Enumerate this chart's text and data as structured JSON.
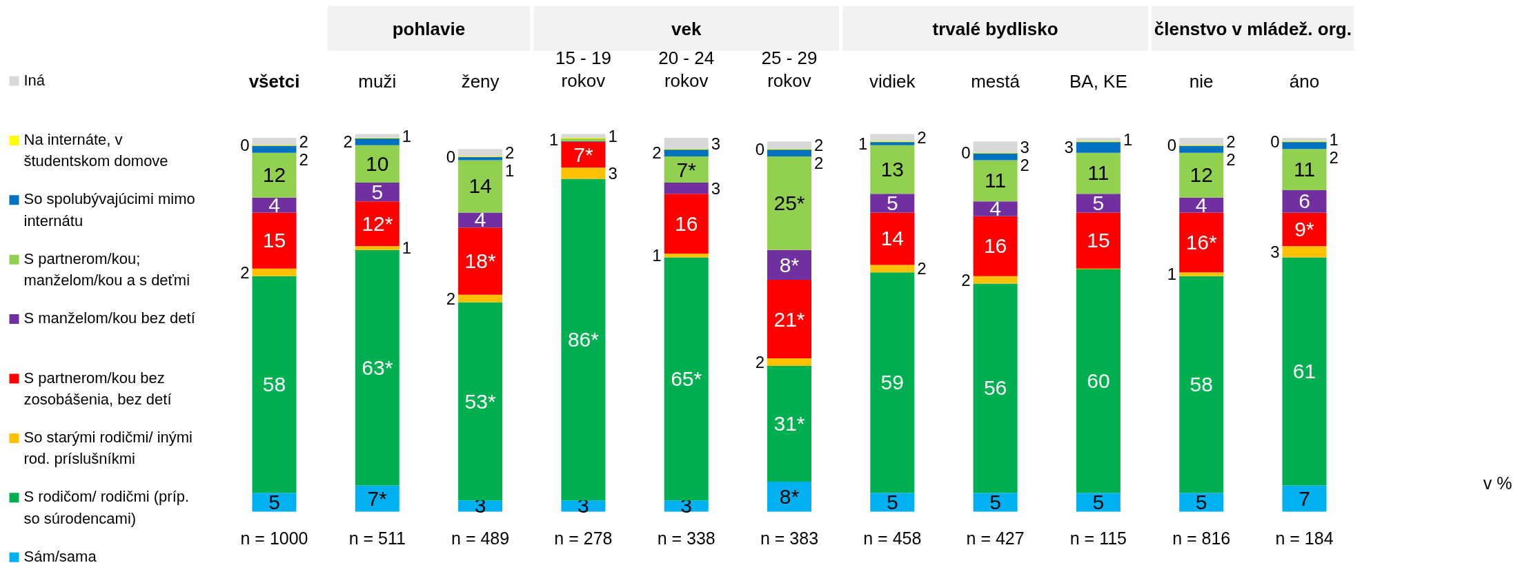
{
  "chart_data": {
    "type": "bar",
    "stacked": true,
    "legend": "left",
    "categories": [
      "všetci",
      "muži",
      "ženy",
      "15 - 19 rokov",
      "20 - 24 rokov",
      "25 - 29 rokov",
      "vidiek",
      "mestá",
      "BA, KE",
      "nie",
      "áno"
    ],
    "series": [
      {
        "name": "Sám/sama",
        "color": "#00b0f0",
        "values": [
          5,
          7,
          3,
          3,
          3,
          8,
          5,
          5,
          5,
          5,
          7
        ],
        "value_labels": [
          "5",
          "7*",
          "3",
          "3",
          "3",
          "8*",
          "5",
          "5",
          "5",
          "5",
          "7"
        ]
      },
      {
        "name": "S rodičom/ rodičmi (príp. so súrodencami)",
        "color": "#00b050",
        "values": [
          58,
          63,
          53,
          86,
          65,
          31,
          59,
          56,
          60,
          58,
          61
        ],
        "value_labels": [
          "58",
          "63*",
          "53*",
          "86*",
          "65*",
          "31*",
          "59",
          "56",
          "60",
          "58",
          "61"
        ]
      },
      {
        "name": "So starými rodičmi/ inými rod. príslušníkmi",
        "color": "#ffc000",
        "values": [
          2,
          1,
          2,
          3,
          1,
          2,
          2,
          2,
          0,
          1,
          3
        ],
        "value_labels": [
          "2",
          "1",
          "2",
          "3",
          "1",
          "2",
          "2",
          "2",
          null,
          "1",
          "3"
        ]
      },
      {
        "name": "S partnerom/kou bez zosobášenia, bez detí",
        "color": "#ff0000",
        "values": [
          15,
          12,
          18,
          7,
          16,
          21,
          14,
          16,
          15,
          16,
          9
        ],
        "value_labels": [
          "15",
          "12*",
          "18*",
          "7*",
          "16",
          "21*",
          "14",
          "16",
          "15",
          "16*",
          "9*"
        ]
      },
      {
        "name": "S manželom/kou bez detí",
        "color": "#7030a0",
        "values": [
          4,
          5,
          4,
          0,
          3,
          8,
          5,
          4,
          5,
          4,
          6
        ],
        "value_labels": [
          "4",
          "5",
          "4",
          null,
          "3",
          "8*",
          "5",
          "4",
          "5",
          "4",
          "6"
        ]
      },
      {
        "name": "S partnerom/kou; manželom/kou a s deťmi",
        "color": "#92d050",
        "values": [
          12,
          10,
          14,
          1,
          7,
          25,
          13,
          11,
          11,
          12,
          11
        ],
        "value_labels": [
          "12",
          "10",
          "14",
          "1",
          "7*",
          "25*",
          "13",
          "11",
          "11",
          "12",
          "11"
        ]
      },
      {
        "name": "So spolubývajúcimi mimo internátu",
        "color": "#0070c0",
        "values": [
          2,
          2,
          1,
          0,
          2,
          2,
          1,
          2,
          3,
          2,
          2
        ],
        "value_labels": [
          "2",
          "2",
          "1",
          null,
          "2",
          "2",
          "1",
          "2",
          "3",
          "2",
          "2"
        ]
      },
      {
        "name": "Na internáte, v študentskom domove",
        "color": "#ffff00",
        "values": [
          0,
          0,
          0,
          0,
          0,
          0,
          0,
          0,
          0,
          0,
          0
        ],
        "value_labels": [
          "0",
          null,
          "0",
          null,
          null,
          "0",
          null,
          "0",
          null,
          "0",
          "0"
        ]
      },
      {
        "name": "Iná",
        "color": "#d9d9d9",
        "values": [
          2,
          1,
          2,
          1,
          3,
          2,
          2,
          3,
          1,
          2,
          1
        ],
        "value_labels": [
          "2",
          "1",
          "2",
          "1",
          "3",
          "2",
          "2",
          "3",
          "1",
          "2",
          "1"
        ]
      }
    ],
    "annotations": [
      "pohlavie",
      "vek",
      "trvalé bydlisko",
      "členstvo v mládež. org.",
      "n = 1000",
      "n = 511",
      "n = 489",
      "n = 278",
      "n = 338",
      "n = 383",
      "n = 458",
      "n = 427",
      "n = 115",
      "n = 816",
      "n = 184",
      "v %"
    ]
  }
}
